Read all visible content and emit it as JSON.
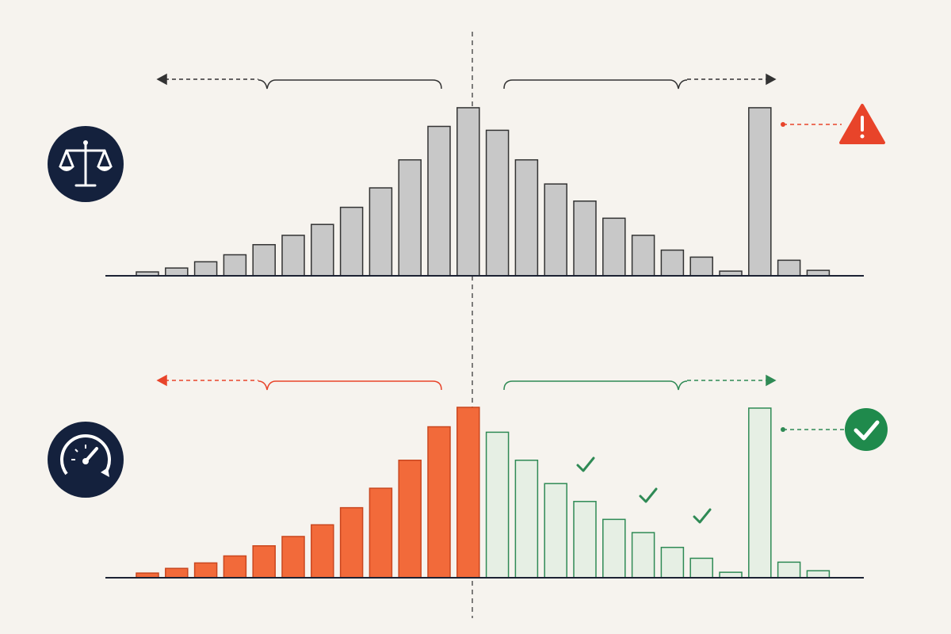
{
  "chart_data": [
    {
      "type": "bar",
      "series": [
        {
          "color": "#c8c8c8",
          "values": [
            5,
            10,
            18,
            27,
            40,
            52,
            66,
            88,
            113,
            149,
            192,
            216,
            187,
            149,
            118,
            96,
            74,
            52,
            33,
            24,
            6,
            216,
            20,
            7
          ]
        }
      ],
      "ylim": [
        0,
        220
      ]
    },
    {
      "type": "bar",
      "series": [
        {
          "color": "#f26a3a",
          "values": [
            6,
            12,
            19,
            28,
            41,
            53,
            68,
            90,
            115,
            151,
            194,
            219,
            null,
            null,
            null,
            null,
            null,
            null,
            null,
            null,
            null,
            null,
            null,
            null
          ]
        },
        {
          "color": "#e6efe4",
          "values": [
            null,
            null,
            null,
            null,
            null,
            null,
            null,
            null,
            null,
            null,
            null,
            null,
            187,
            151,
            121,
            98,
            75,
            58,
            39,
            25,
            7,
            218,
            20,
            9
          ]
        }
      ],
      "ylim": [
        0,
        220
      ]
    }
  ]
}
